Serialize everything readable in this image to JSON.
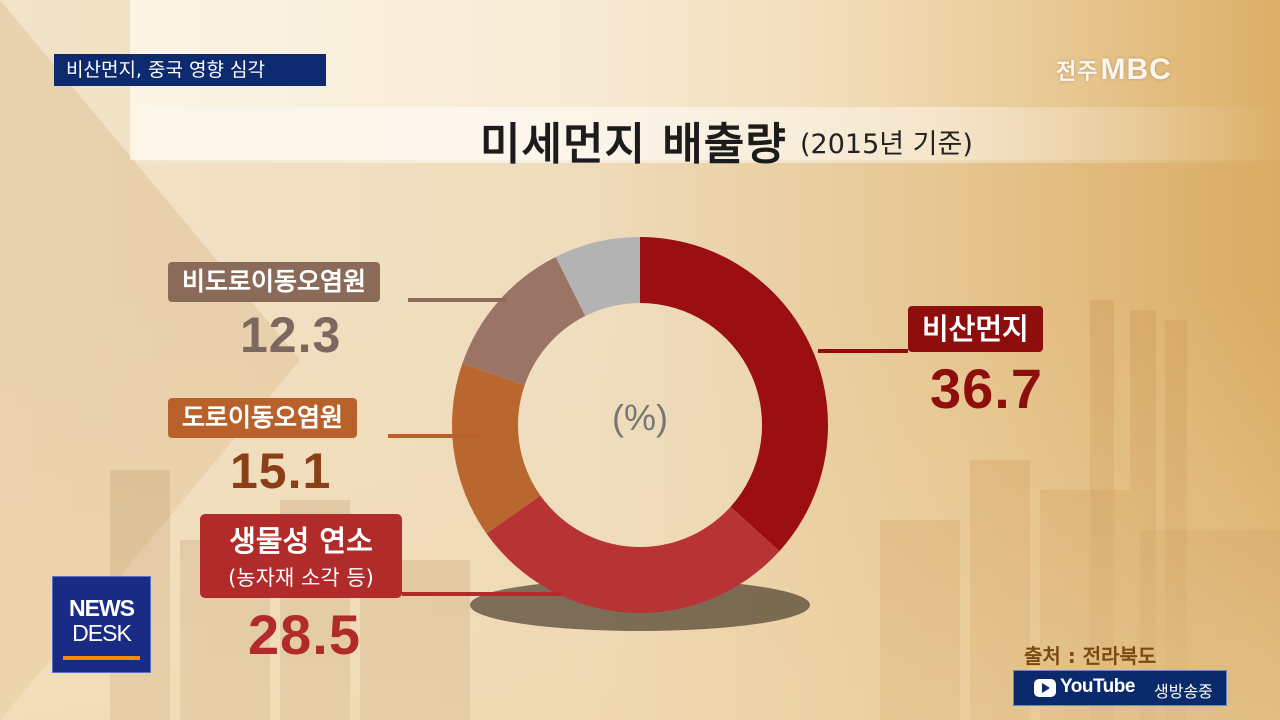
{
  "news": {
    "headline": "비산먼지, 중국 영향 심각",
    "channel_region": "전주",
    "channel_brand": "MBC",
    "program_line1": "NEWS",
    "program_line2": "DESK",
    "youtube_text": "YouTube",
    "youtube_live": "생방송중",
    "source": "출처 : 전라북도"
  },
  "chart_data": {
    "type": "pie",
    "title": "미세먼지 배출량",
    "subtitle": "(2015년 기준)",
    "unit": "(%)",
    "slices": [
      {
        "name": "비산먼지",
        "value": 36.7,
        "color": "#9b0f12"
      },
      {
        "name": "생물성 연소",
        "note": "(농자재 소각 등)",
        "value": 28.5,
        "color": "#b83434"
      },
      {
        "name": "도로이동오염원",
        "value": 15.1,
        "color": "#b9662f"
      },
      {
        "name": "비도로이동오염원",
        "value": 12.3,
        "color": "#9a7464"
      },
      {
        "name": "",
        "value": 7.4,
        "color": "#b3b3b3"
      }
    ],
    "value_labels": {
      "dust": "36.7",
      "bio": "28.5",
      "road": "15.1",
      "nonroad": "12.3"
    }
  }
}
